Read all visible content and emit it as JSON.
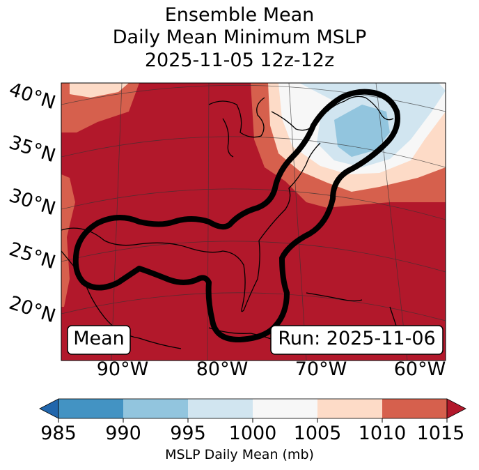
{
  "title": {
    "line1": "Ensemble Mean",
    "line2": "Daily Mean Minimum MSLP",
    "line3": "2025-11-05 12z-12z"
  },
  "map": {
    "lat_labels": [
      "40°N",
      "35°N",
      "30°N",
      "25°N",
      "20°N"
    ],
    "lon_labels": [
      "90°W",
      "80°W",
      "70°W",
      "60°W"
    ],
    "mean_box": "Mean",
    "run_box": "Run: 2025-11-06"
  },
  "colorbar": {
    "ticks": [
      "985",
      "990",
      "995",
      "1000",
      "1005",
      "1010",
      "1015"
    ],
    "label": "MSLP Daily Mean (mb)",
    "colors": [
      "#2166ac",
      "#4393c3",
      "#92c5de",
      "#d1e5f0",
      "#f7f7f7",
      "#fddbc7",
      "#d6604d",
      "#b2182b"
    ]
  }
}
